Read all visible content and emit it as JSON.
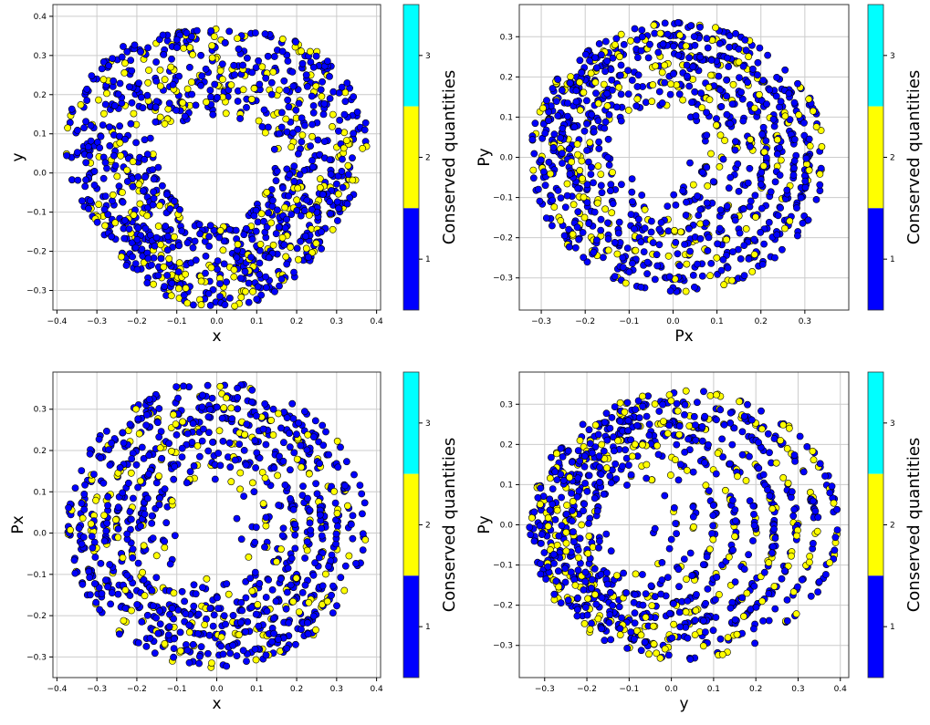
{
  "colors": {
    "blue": "#0000ff",
    "yellow": "#ffff00",
    "cyan": "#00ffff",
    "edge": "#000000",
    "grid": "#cccccc",
    "frame": "#333333"
  },
  "colorbar": {
    "label": "Conserved quantities",
    "ticks": [
      "1",
      "2",
      "3"
    ],
    "bands": [
      1,
      2,
      3
    ]
  },
  "chart_data": [
    {
      "type": "scatter",
      "xlabel": "x",
      "ylabel": "y",
      "xlim": [
        -0.41,
        0.41
      ],
      "ylim": [
        -0.35,
        0.43
      ],
      "xticks": [
        "-0.4",
        "-0.3",
        "-0.2",
        "-0.1",
        "0.0",
        "0.1",
        "0.2",
        "0.3",
        "0.4"
      ],
      "xtick_values": [
        -0.4,
        -0.3,
        -0.2,
        -0.1,
        0.0,
        0.1,
        0.2,
        0.3,
        0.4
      ],
      "yticks": [
        "-0.3",
        "-0.2",
        "-0.1",
        "0.0",
        "0.1",
        "0.2",
        "0.3",
        "0.4"
      ],
      "ytick_values": [
        -0.3,
        -0.2,
        -0.1,
        0.0,
        0.1,
        0.2,
        0.3,
        0.4
      ],
      "grid": true,
      "shape": {
        "kind": "lobed",
        "rx": 0.37,
        "ry_top": 0.4,
        "ry_bottom": 0.32,
        "cx": 0.0,
        "cy": 0.0,
        "hole": 0
      },
      "series": [
        {
          "value": 1,
          "color": "blue",
          "share": 0.75
        },
        {
          "value": 2,
          "color": "yellow",
          "share": 0.25
        }
      ]
    },
    {
      "type": "scatter",
      "xlabel": "Px",
      "ylabel": "Py",
      "xlim": [
        -0.35,
        0.4
      ],
      "ylim": [
        -0.38,
        0.38
      ],
      "xticks": [
        "-0.3",
        "-0.2",
        "-0.1",
        "0.0",
        "0.1",
        "0.2",
        "0.3"
      ],
      "xtick_values": [
        -0.3,
        -0.2,
        -0.1,
        0.0,
        0.1,
        0.2,
        0.3
      ],
      "yticks": [
        "-0.3",
        "-0.2",
        "-0.1",
        "0.0",
        "0.1",
        "0.2",
        "0.3"
      ],
      "ytick_values": [
        -0.3,
        -0.2,
        -0.1,
        0.0,
        0.1,
        0.2,
        0.3
      ],
      "grid": true,
      "shape": {
        "kind": "ring",
        "rx": 0.33,
        "ry": 0.33,
        "cx": 0.01,
        "cy": 0.0,
        "hole_rx": 0.09,
        "hole_ry": 0.09,
        "hole_cx": -0.04,
        "hole_cy": 0.02
      },
      "series": [
        {
          "value": 1,
          "color": "blue",
          "share": 0.78
        },
        {
          "value": 2,
          "color": "yellow",
          "share": 0.22
        }
      ]
    },
    {
      "type": "scatter",
      "xlabel": "x",
      "ylabel": "Px",
      "xlim": [
        -0.41,
        0.41
      ],
      "ylim": [
        -0.35,
        0.39
      ],
      "xticks": [
        "-0.4",
        "-0.3",
        "-0.2",
        "-0.1",
        "0.0",
        "0.1",
        "0.2",
        "0.3",
        "0.4"
      ],
      "xtick_values": [
        -0.4,
        -0.3,
        -0.2,
        -0.1,
        0.0,
        0.1,
        0.2,
        0.3,
        0.4
      ],
      "yticks": [
        "-0.3",
        "-0.2",
        "-0.1",
        "0.0",
        "0.1",
        "0.2",
        "0.3"
      ],
      "ytick_values": [
        -0.3,
        -0.2,
        -0.1,
        0.0,
        0.1,
        0.2,
        0.3
      ],
      "grid": true,
      "shape": {
        "kind": "ring",
        "rx": 0.37,
        "ry": 0.34,
        "cx": 0.0,
        "cy": 0.02,
        "hole_rx": 0.08,
        "hole_ry": 0.11,
        "hole_cx": -0.02,
        "hole_cy": 0.0
      },
      "series": [
        {
          "value": 1,
          "color": "blue",
          "share": 0.8
        },
        {
          "value": 2,
          "color": "yellow",
          "share": 0.2
        }
      ]
    },
    {
      "type": "scatter",
      "xlabel": "y",
      "ylabel": "Py",
      "xlim": [
        -0.36,
        0.42
      ],
      "ylim": [
        -0.38,
        0.38
      ],
      "xticks": [
        "-0.3",
        "-0.2",
        "-0.1",
        "0.0",
        "0.1",
        "0.2",
        "0.3",
        "0.4"
      ],
      "xtick_values": [
        -0.3,
        -0.2,
        -0.1,
        0.0,
        0.1,
        0.2,
        0.3,
        0.4
      ],
      "yticks": [
        "-0.3",
        "-0.2",
        "-0.1",
        "0.0",
        "0.1",
        "0.2",
        "0.3"
      ],
      "ytick_values": [
        -0.3,
        -0.2,
        -0.1,
        0.0,
        0.1,
        0.2,
        0.3
      ],
      "grid": true,
      "shape": {
        "kind": "ring",
        "rx": 0.36,
        "ry": 0.33,
        "cx": 0.03,
        "cy": 0.0,
        "hole_rx": 0.06,
        "hole_ry": 0.1,
        "hole_cx": -0.1,
        "hole_cy": 0.0
      },
      "series": [
        {
          "value": 1,
          "color": "blue",
          "share": 0.7
        },
        {
          "value": 2,
          "color": "yellow",
          "share": 0.3
        }
      ]
    }
  ]
}
